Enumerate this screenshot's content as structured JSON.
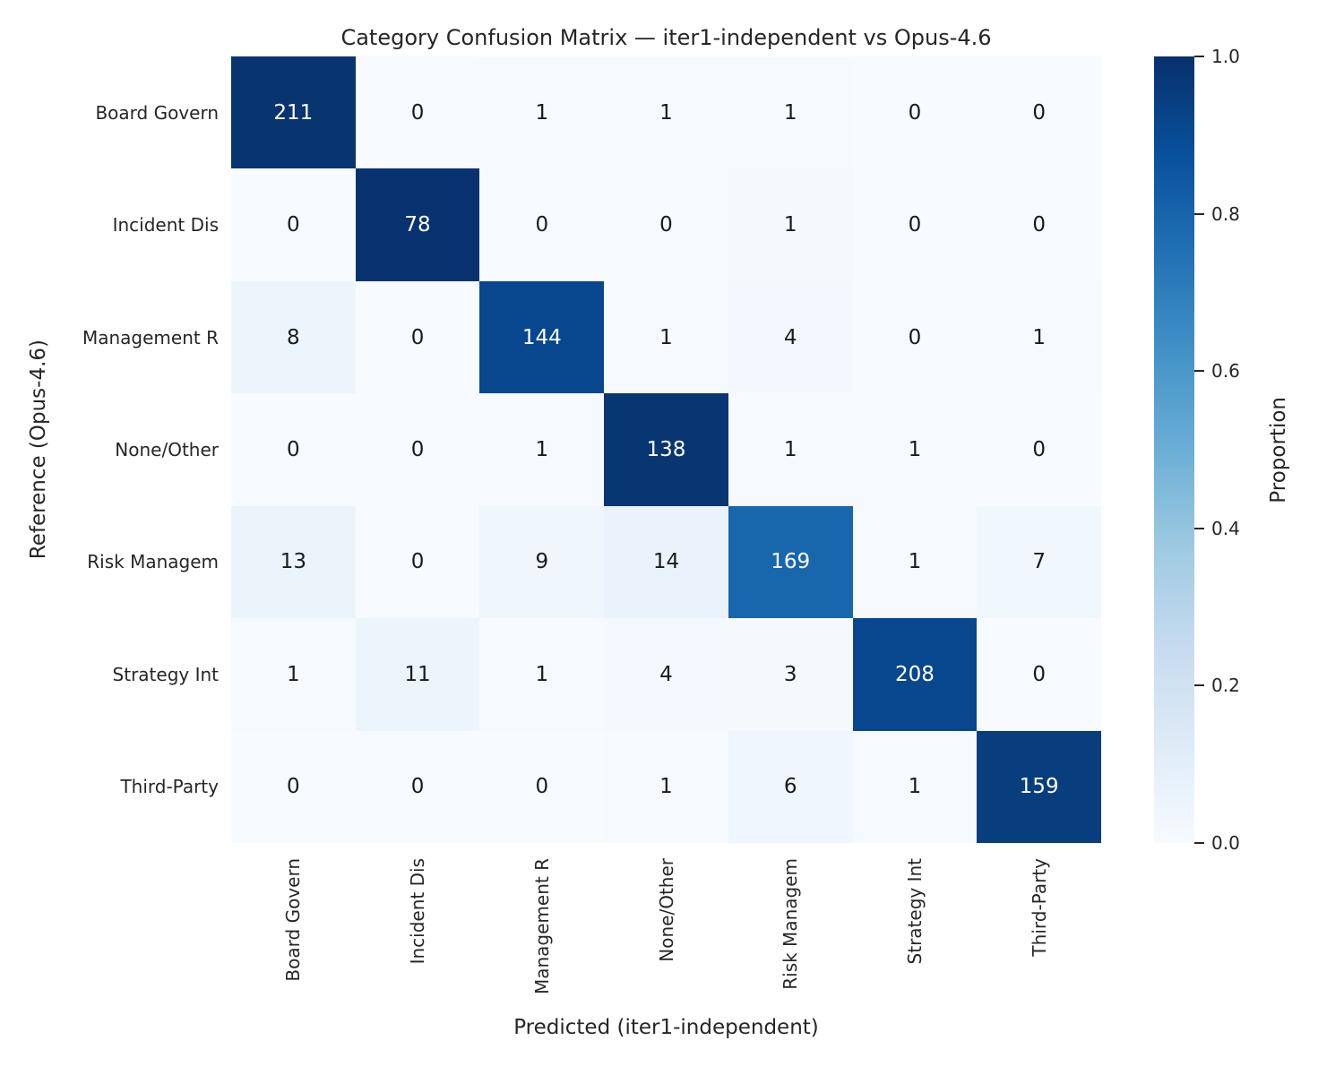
{
  "chart_data": {
    "type": "heatmap",
    "title": "Category Confusion Matrix — iter1-independent vs Opus-4.6",
    "xlabel": "Predicted (iter1-independent)",
    "ylabel": "Reference (Opus-4.6)",
    "x_categories": [
      "Board Govern",
      "Incident Dis",
      "Management R",
      "None/Other",
      "Risk Managem",
      "Strategy Int",
      "Third-Party"
    ],
    "y_categories": [
      "Board Govern",
      "Incident Dis",
      "Management R",
      "None/Other",
      "Risk Managem",
      "Strategy Int",
      "Third-Party"
    ],
    "matrix": [
      [
        211,
        0,
        1,
        1,
        1,
        0,
        0
      ],
      [
        0,
        78,
        0,
        0,
        1,
        0,
        0
      ],
      [
        8,
        0,
        144,
        1,
        4,
        0,
        1
      ],
      [
        0,
        0,
        1,
        138,
        1,
        1,
        0
      ],
      [
        13,
        0,
        9,
        14,
        169,
        1,
        7
      ],
      [
        1,
        11,
        1,
        4,
        3,
        208,
        0
      ],
      [
        0,
        0,
        0,
        1,
        6,
        1,
        159
      ]
    ],
    "normalization": "row-proportion",
    "colormap": "Blues",
    "colormap_stops": [
      {
        "t": 0.0,
        "hex": "#f7fbff"
      },
      {
        "t": 0.125,
        "hex": "#deebf7"
      },
      {
        "t": 0.25,
        "hex": "#c6dbef"
      },
      {
        "t": 0.375,
        "hex": "#9ecae1"
      },
      {
        "t": 0.5,
        "hex": "#6baed6"
      },
      {
        "t": 0.625,
        "hex": "#4292c6"
      },
      {
        "t": 0.75,
        "hex": "#2171b5"
      },
      {
        "t": 0.875,
        "hex": "#08519c"
      },
      {
        "t": 1.0,
        "hex": "#08306b"
      }
    ],
    "colorbar_label": "Proportion",
    "colorbar_ticks": [
      {
        "label": "1.0",
        "value": 1.0
      },
      {
        "label": "0.8",
        "value": 0.8
      },
      {
        "label": "0.6",
        "value": 0.6
      },
      {
        "label": "0.4",
        "value": 0.4
      },
      {
        "label": "0.2",
        "value": 0.2
      },
      {
        "label": "0.0",
        "value": 0.0
      }
    ],
    "grid": false,
    "legend_position": "right-colorbar",
    "colors": {
      "background": "#ffffff",
      "label_text": "#262626",
      "annotation_on_dark": "#ffffff",
      "annotation_on_light": "#1a1a1a",
      "tick_mark": "#262626"
    }
  }
}
